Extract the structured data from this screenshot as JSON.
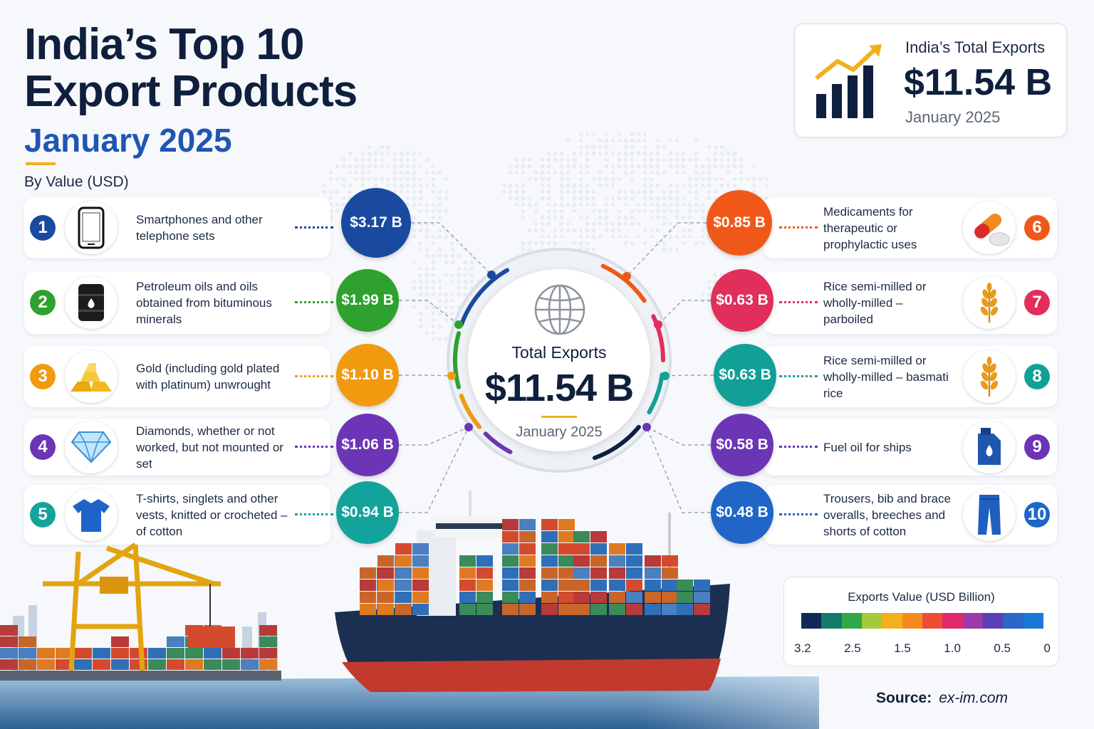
{
  "title_line1": "India’s Top 10",
  "title_line2": "Export Products",
  "subtitle": "January 2025",
  "by_value": "By Value (USD)",
  "total_box": {
    "label": "India’s Total Exports",
    "value": "$11.54 B",
    "date": "January 2025"
  },
  "center": {
    "label": "Total Exports",
    "value": "$11.54 B",
    "date": "January 2025"
  },
  "products": [
    {
      "rank": "1",
      "name": "Smartphones and other telephone sets",
      "value": "$3.17 B",
      "color": "#1a4aa0",
      "icon": "smartphone-icon"
    },
    {
      "rank": "2",
      "name": "Petroleum oils and oils obtained from bituminous minerals",
      "value": "$1.99 B",
      "color": "#2ea12e",
      "icon": "oil-barrel-icon"
    },
    {
      "rank": "3",
      "name": "Gold (including gold plated with platinum) unwrought",
      "value": "$1.10 B",
      "color": "#f09a10",
      "icon": "gold-bars-icon"
    },
    {
      "rank": "4",
      "name": "Diamonds, whether or not worked, but not mounted or set",
      "value": "$1.06 B",
      "color": "#6b35b5",
      "icon": "diamond-icon"
    },
    {
      "rank": "5",
      "name": "T-shirts, singlets and other vests, knitted or crocheted – of cotton",
      "value": "$0.94 B",
      "color": "#13a39a",
      "icon": "tshirt-icon"
    },
    {
      "rank": "6",
      "name": "Medicaments for therapeutic or prophylactic uses",
      "value": "$0.85 B",
      "color": "#f0581a",
      "icon": "pill-capsule-icon"
    },
    {
      "rank": "7",
      "name": "Rice semi-milled or wholly-milled – parboiled",
      "value": "$0.63 B",
      "color": "#e22e5a",
      "icon": "rice-plant-icon"
    },
    {
      "rank": "8",
      "name": "Rice semi-milled or wholly-milled – basmati rice",
      "value": "$0.63 B",
      "color": "#12a096",
      "icon": "rice-plant-icon"
    },
    {
      "rank": "9",
      "name": "Fuel oil for ships",
      "value": "$0.58 B",
      "color": "#6b35b5",
      "icon": "fuel-can-icon"
    },
    {
      "rank": "10",
      "name": "Trousers, bib and brace overalls, breeches and shorts of cotton",
      "value": "$0.48 B",
      "color": "#1f66c8",
      "icon": "trousers-icon"
    }
  ],
  "legend": {
    "title": "Exports Value (USD Billion)",
    "ticks": [
      "3.2",
      "2.5",
      "1.5",
      "1.0",
      "0.5",
      "0"
    ],
    "colors": [
      "#0f2a5a",
      "#15796b",
      "#2fa84a",
      "#a4c93a",
      "#f2b01e",
      "#f38a1e",
      "#ee4d35",
      "#e02a6b",
      "#9b3aa8",
      "#5b3fb5",
      "#2b66c9",
      "#1a78d8"
    ]
  },
  "source": {
    "label": "Source:",
    "value": "ex-im.com"
  }
}
